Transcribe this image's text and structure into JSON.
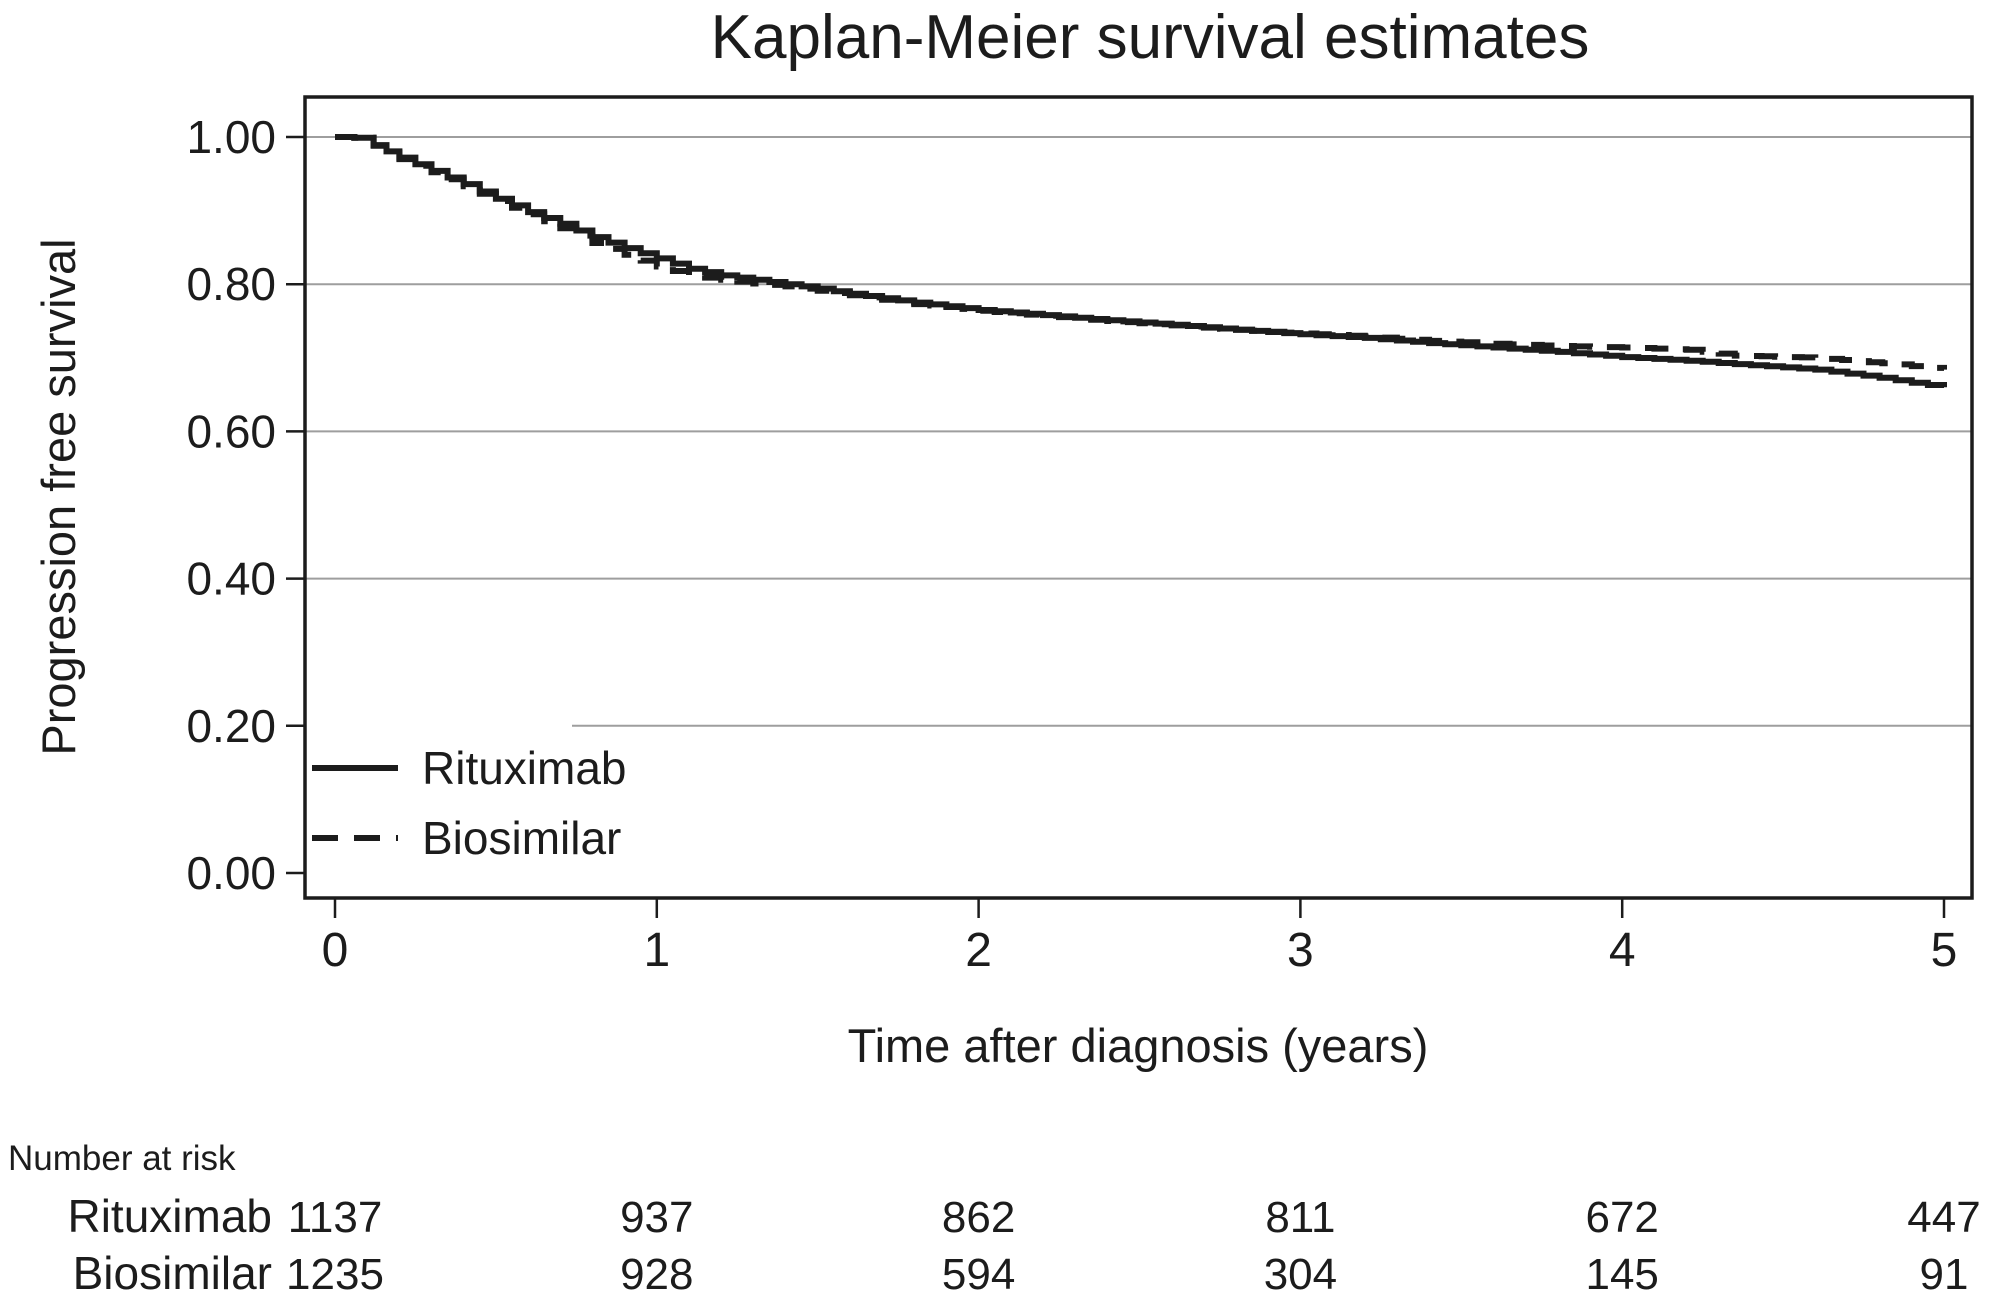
{
  "chart_data": {
    "type": "line",
    "subtype": "kaplan-meier-step",
    "title": "Kaplan-Meier survival estimates",
    "xlabel": "Time after diagnosis (years)",
    "ylabel": "Progression free survival",
    "xlim": [
      0,
      5
    ],
    "ylim": [
      0.0,
      1.0
    ],
    "grid": "horizontal",
    "grid_levels": [
      0.2,
      0.4,
      0.6,
      0.8,
      1.0
    ],
    "legend_position": "inside-bottom-left",
    "x_ticks": [
      {
        "value": 0,
        "label": "0"
      },
      {
        "value": 1,
        "label": "1"
      },
      {
        "value": 2,
        "label": "2"
      },
      {
        "value": 3,
        "label": "3"
      },
      {
        "value": 4,
        "label": "4"
      },
      {
        "value": 5,
        "label": "5"
      }
    ],
    "y_ticks": [
      {
        "value": 0.0,
        "label": "0.00"
      },
      {
        "value": 0.2,
        "label": "0.20"
      },
      {
        "value": 0.4,
        "label": "0.40"
      },
      {
        "value": 0.6,
        "label": "0.60"
      },
      {
        "value": 0.8,
        "label": "0.80"
      },
      {
        "value": 1.0,
        "label": "1.00"
      }
    ],
    "series": [
      {
        "name": "Rituximab",
        "style": "solid",
        "points": [
          [
            0.0,
            1.0
          ],
          [
            0.06,
            0.999
          ],
          [
            0.12,
            0.989
          ],
          [
            0.2,
            0.972
          ],
          [
            0.3,
            0.954
          ],
          [
            0.4,
            0.936
          ],
          [
            0.5,
            0.916
          ],
          [
            0.6,
            0.898
          ],
          [
            0.7,
            0.882
          ],
          [
            0.8,
            0.864
          ],
          [
            0.9,
            0.849
          ],
          [
            1.0,
            0.835
          ],
          [
            1.1,
            0.821
          ],
          [
            1.2,
            0.812
          ],
          [
            1.3,
            0.806
          ],
          [
            1.4,
            0.8
          ],
          [
            1.5,
            0.794
          ],
          [
            1.6,
            0.787
          ],
          [
            1.7,
            0.781
          ],
          [
            1.8,
            0.775
          ],
          [
            1.9,
            0.77
          ],
          [
            2.0,
            0.765
          ],
          [
            2.2,
            0.758
          ],
          [
            2.4,
            0.751
          ],
          [
            2.6,
            0.745
          ],
          [
            2.8,
            0.738
          ],
          [
            3.0,
            0.732
          ],
          [
            3.2,
            0.727
          ],
          [
            3.4,
            0.72
          ],
          [
            3.6,
            0.714
          ],
          [
            3.8,
            0.708
          ],
          [
            4.0,
            0.701
          ],
          [
            4.2,
            0.696
          ],
          [
            4.4,
            0.69
          ],
          [
            4.6,
            0.684
          ],
          [
            4.8,
            0.673
          ],
          [
            4.9,
            0.666
          ],
          [
            5.0,
            0.66
          ]
        ]
      },
      {
        "name": "Biosimilar",
        "style": "dashed",
        "points": [
          [
            0.0,
            1.0
          ],
          [
            0.06,
            0.999
          ],
          [
            0.12,
            0.988
          ],
          [
            0.2,
            0.97
          ],
          [
            0.3,
            0.952
          ],
          [
            0.4,
            0.933
          ],
          [
            0.5,
            0.913
          ],
          [
            0.6,
            0.895
          ],
          [
            0.7,
            0.876
          ],
          [
            0.8,
            0.856
          ],
          [
            0.9,
            0.84
          ],
          [
            1.0,
            0.824
          ],
          [
            1.1,
            0.812
          ],
          [
            1.2,
            0.806
          ],
          [
            1.3,
            0.801
          ],
          [
            1.4,
            0.797
          ],
          [
            1.5,
            0.791
          ],
          [
            1.6,
            0.785
          ],
          [
            1.7,
            0.779
          ],
          [
            1.8,
            0.773
          ],
          [
            1.9,
            0.769
          ],
          [
            2.0,
            0.764
          ],
          [
            2.2,
            0.757
          ],
          [
            2.4,
            0.75
          ],
          [
            2.6,
            0.744
          ],
          [
            2.8,
            0.738
          ],
          [
            3.0,
            0.733
          ],
          [
            3.2,
            0.729
          ],
          [
            3.4,
            0.723
          ],
          [
            3.6,
            0.719
          ],
          [
            3.8,
            0.716
          ],
          [
            4.0,
            0.714
          ],
          [
            4.2,
            0.711
          ],
          [
            4.35,
            0.703
          ],
          [
            4.6,
            0.7
          ],
          [
            4.85,
            0.691
          ],
          [
            5.0,
            0.684
          ]
        ]
      }
    ],
    "number_at_risk": {
      "header": "Number at risk",
      "rows": [
        {
          "label": "Rituximab",
          "values": [
            "1137",
            "937",
            "862",
            "811",
            "672",
            "447"
          ]
        },
        {
          "label": "Biosimilar",
          "values": [
            "1235",
            "928",
            "594",
            "304",
            "145",
            "91"
          ]
        }
      ]
    },
    "colors": {
      "line": "#1c1c1c",
      "grid": "#9e9e9e",
      "axis": "#1c1c1c",
      "background": "#ffffff"
    }
  }
}
